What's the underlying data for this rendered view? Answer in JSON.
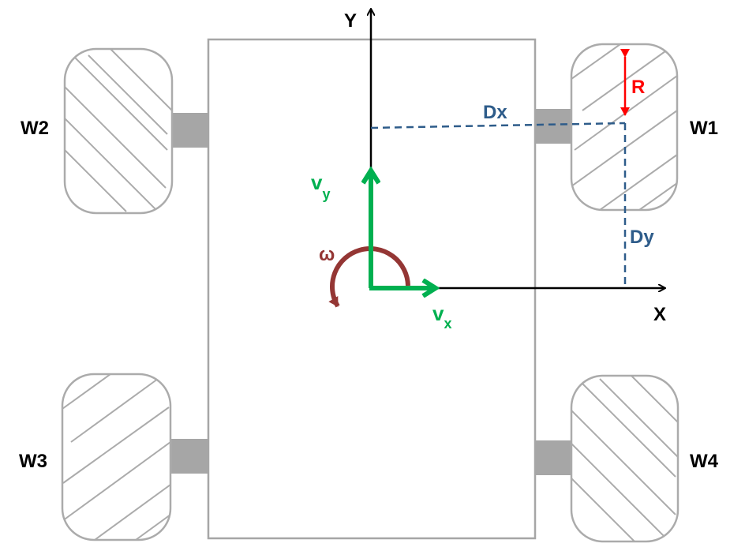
{
  "diagram": {
    "wheels": {
      "w1": "W1",
      "w2": "W2",
      "w3": "W3",
      "w4": "W4"
    },
    "axes": {
      "x_label": "X",
      "y_label": "Y"
    },
    "velocities": {
      "vx_main": "v",
      "vx_sub": "x",
      "vy_main": "v",
      "vy_sub": "y",
      "omega": "ω"
    },
    "dimensions": {
      "dx": "Dx",
      "dy": "Dy",
      "radius": "R"
    },
    "colors": {
      "velocity": "#00b050",
      "omega": "#943634",
      "dimension": "#2e5c8a",
      "radius": "#ff0000",
      "wheel": "#ababab",
      "hub": "#a6a6a6"
    }
  }
}
